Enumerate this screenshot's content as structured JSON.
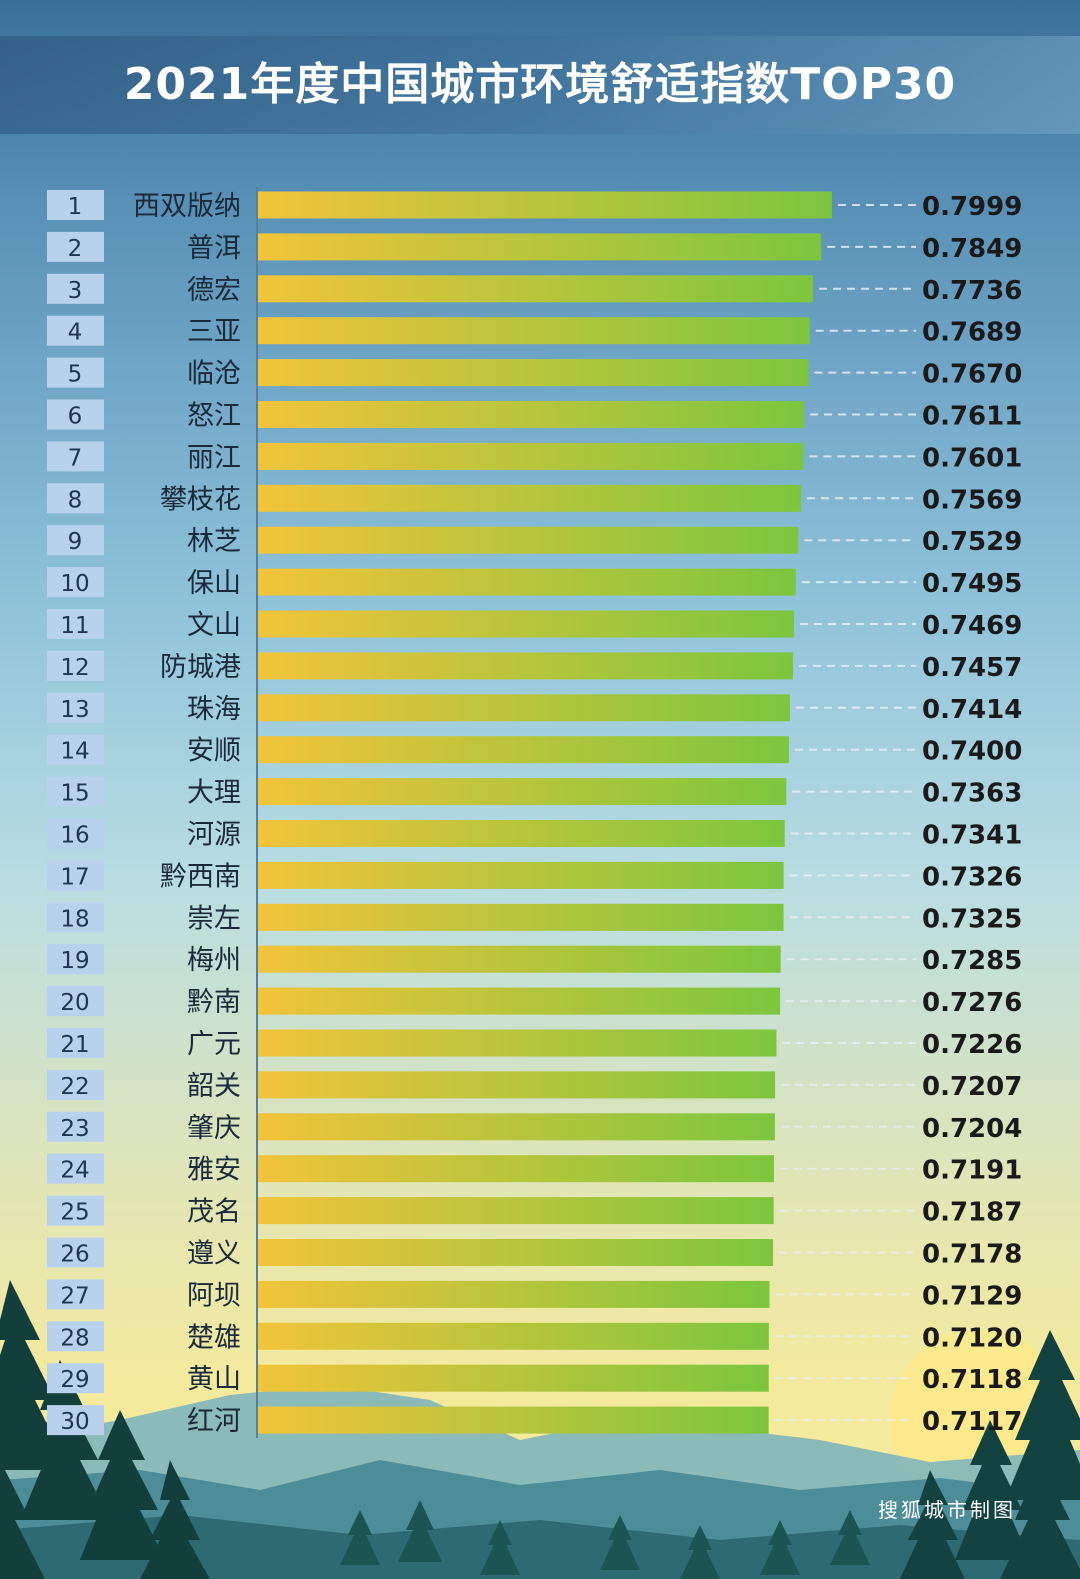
{
  "title": "2021年度中国城市环境舒适指数TOP30",
  "credit": "搜狐城市制图",
  "colors": {
    "bar_start": "#f2c43a",
    "bar_end": "#7cc63e",
    "rank_box": "#b8d2ee",
    "rank_text": "#1f3550",
    "label_text": "#1a2a3a",
    "value_text": "#1a1a1a",
    "title_text": "#ffffff"
  },
  "chart_data": {
    "type": "bar",
    "orientation": "horizontal",
    "title": "2021年度中国城市环境舒适指数TOP30",
    "xlim": [
      0,
      0.8
    ],
    "grid": false,
    "ranks": [
      "1",
      "2",
      "3",
      "4",
      "5",
      "6",
      "7",
      "8",
      "9",
      "10",
      "11",
      "12",
      "13",
      "14",
      "15",
      "16",
      "17",
      "18",
      "19",
      "20",
      "21",
      "22",
      "23",
      "24",
      "25",
      "26",
      "27",
      "28",
      "29",
      "30"
    ],
    "categories": [
      "西双版纳",
      "普洱",
      "德宏",
      "三亚",
      "临沧",
      "怒江",
      "丽江",
      "攀枝花",
      "林芝",
      "保山",
      "文山",
      "防城港",
      "珠海",
      "安顺",
      "大理",
      "河源",
      "黔西南",
      "崇左",
      "梅州",
      "黔南",
      "广元",
      "韶关",
      "肇庆",
      "雅安",
      "茂名",
      "遵义",
      "阿坝",
      "楚雄",
      "黄山",
      "红河"
    ],
    "values": [
      0.7999,
      0.7849,
      0.7736,
      0.7689,
      0.767,
      0.7611,
      0.7601,
      0.7569,
      0.7529,
      0.7495,
      0.7469,
      0.7457,
      0.7414,
      0.74,
      0.7363,
      0.7341,
      0.7326,
      0.7325,
      0.7285,
      0.7276,
      0.7226,
      0.7207,
      0.7204,
      0.7191,
      0.7187,
      0.7178,
      0.7129,
      0.712,
      0.7118,
      0.7117
    ],
    "value_labels": [
      "0.7999",
      "0.7849",
      "0.7736",
      "0.7689",
      "0.7670",
      "0.7611",
      "0.7601",
      "0.7569",
      "0.7529",
      "0.7495",
      "0.7469",
      "0.7457",
      "0.7414",
      "0.7400",
      "0.7363",
      "0.7341",
      "0.7326",
      "0.7325",
      "0.7285",
      "0.7276",
      "0.7226",
      "0.7207",
      "0.7204",
      "0.7191",
      "0.7187",
      "0.7178",
      "0.7129",
      "0.7120",
      "0.7118",
      "0.7117"
    ]
  }
}
